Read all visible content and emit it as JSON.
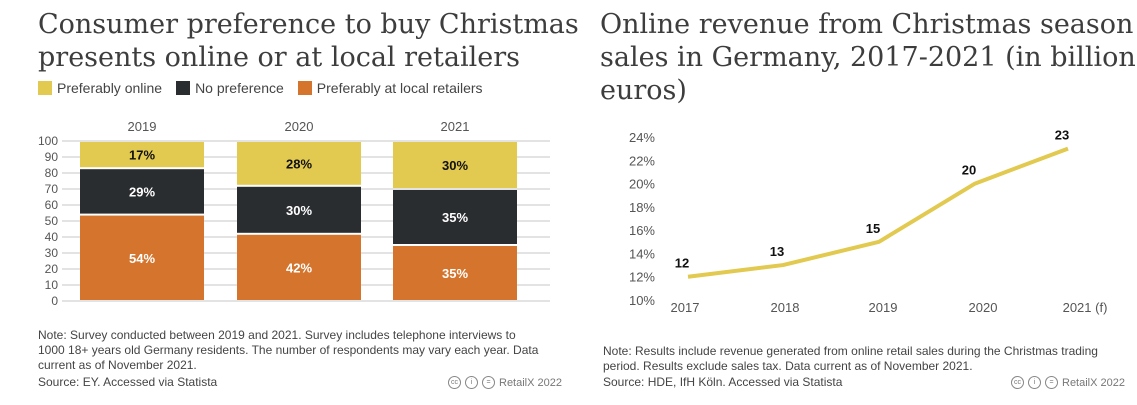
{
  "left": {
    "title_line1": "Consumer preference to buy Christmas",
    "title_line2": "presents online or at local retailers",
    "note_lines": [
      "Note: Survey conducted between 2019 and 2021. Survey includes telephone interviews to",
      "1000 18+ years old Germany residents. The number of respondents may vary each year. Data",
      "current as of November 2021."
    ],
    "source": "Source: EY. Accessed via Statista",
    "credit": "RetailX 2022"
  },
  "right": {
    "title_line1": "Online revenue from Christmas season",
    "title_line2": "sales in Germany, 2017-2021 (in billion",
    "title_line3": "euros)",
    "note_lines": [
      "Note: Results include revenue generated from online retail sales during the Christmas trading",
      "period. Results exclude sales tax. Data current as of November 2021."
    ],
    "source": "Source: HDE, IfH Köln. Accessed via Statista",
    "credit": "RetailX 2022"
  },
  "chart_data": [
    {
      "type": "bar",
      "stacked": true,
      "categories": [
        "2019",
        "2020",
        "2021"
      ],
      "series": [
        {
          "name": "Preferably at local retailers",
          "values": [
            54,
            42,
            35
          ],
          "labels": [
            "54%",
            "42%",
            "35%"
          ],
          "color": "#d4742d"
        },
        {
          "name": "No preference",
          "values": [
            29,
            30,
            35
          ],
          "labels": [
            "29%",
            "30%",
            "35%"
          ],
          "color": "#2a2d30"
        },
        {
          "name": "Preferably online",
          "values": [
            17,
            28,
            30
          ],
          "labels": [
            "17%",
            "28%",
            "30%"
          ],
          "color": "#e2c94f"
        }
      ],
      "legend_order": [
        "Preferably online",
        "No preference",
        "Preferably at local retailers"
      ],
      "legend_placement": "top",
      "yticks": [
        "0",
        "10",
        "20",
        "30",
        "40",
        "50",
        "60",
        "70",
        "80",
        "90",
        "100"
      ],
      "ylim": [
        0,
        100
      ],
      "grid": true
    },
    {
      "type": "line",
      "categories": [
        "2017",
        "2018",
        "2019",
        "2020",
        "2021 (f)"
      ],
      "values": [
        12,
        13,
        15,
        20,
        23
      ],
      "labels": [
        "12",
        "13",
        "15",
        "20",
        "23"
      ],
      "yticks": [
        "10%",
        "12%",
        "14%",
        "16%",
        "18%",
        "20%",
        "22%",
        "24%"
      ],
      "ylim": [
        10,
        24
      ],
      "color": "#e2c94f",
      "grid": false
    }
  ]
}
